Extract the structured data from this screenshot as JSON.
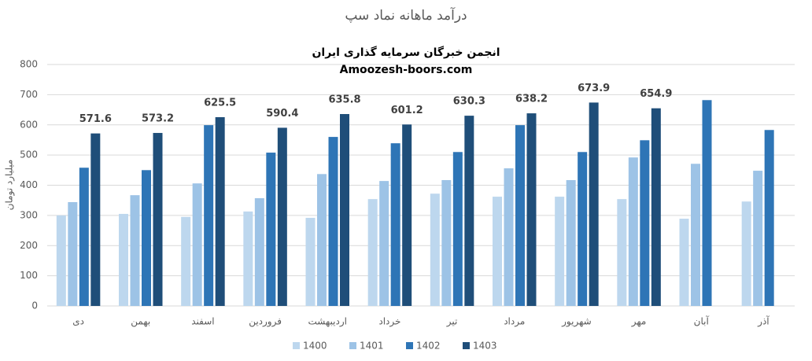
{
  "chart_data": {
    "type": "bar",
    "title": "درآمد ماهانه نماد سپ",
    "subtitle": [
      "انجمن خبرگان سرمایه گذاری ایران",
      "Amoozesh-boors.com"
    ],
    "ylabel": "میلیارد تومان",
    "categories": [
      "دی",
      "بهمن",
      "اسفند",
      "فروردین",
      "اردیبهشت",
      "خرداد",
      "تیر",
      "مرداد",
      "شهریور",
      "مهر",
      "آبان",
      "آذر"
    ],
    "series": [
      {
        "name": "1400",
        "color": "#bdd7ee",
        "values": [
          300,
          305,
          295,
          313,
          292,
          354,
          372,
          362,
          362,
          354,
          289,
          346
        ]
      },
      {
        "name": "1401",
        "color": "#9dc3e6",
        "values": [
          344,
          367,
          406,
          357,
          437,
          414,
          417,
          456,
          417,
          492,
          471,
          448
        ]
      },
      {
        "name": "1402",
        "color": "#2e75b6",
        "values": [
          458,
          450,
          599,
          508,
          560,
          539,
          510,
          599,
          510,
          549,
          682,
          583
        ]
      },
      {
        "name": "1403",
        "color": "#1f4e79",
        "values": [
          571.6,
          573.2,
          625.5,
          590.4,
          635.8,
          601.2,
          630.3,
          638.2,
          673.9,
          654.9,
          null,
          null
        ],
        "data_labels": true
      }
    ],
    "ylim": [
      0,
      800
    ],
    "yticks": [
      0,
      100,
      200,
      300,
      400,
      500,
      600,
      700,
      800
    ],
    "grid": true,
    "legend": "bottom"
  }
}
